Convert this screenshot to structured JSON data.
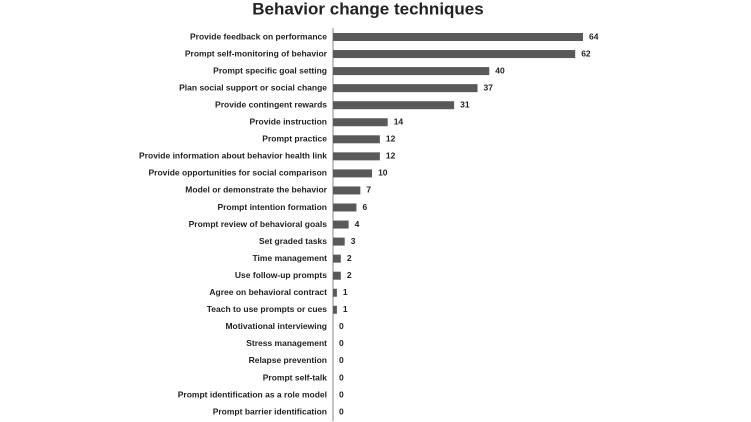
{
  "chart_data": {
    "type": "bar",
    "orientation": "horizontal",
    "title": "Behavior change techniques",
    "categories": [
      "Provide feedback on performance",
      "Prompt self-monitoring of behavior",
      "Prompt specific goal setting",
      "Plan social support or social change",
      "Provide contingent rewards",
      "Provide instruction",
      "Prompt practice",
      "Provide information about behavior health link",
      "Provide opportunities for social comparison",
      "Model or demonstrate the behavior",
      "Prompt intention formation",
      "Prompt review of behavioral goals",
      "Set graded tasks",
      "Time management",
      "Use follow-up prompts",
      "Agree on behavioral contract",
      "Teach to use prompts or cues",
      "Motivational interviewing",
      "Stress management",
      "Relapse prevention",
      "Prompt self-talk",
      "Prompt identification as a role model",
      "Prompt barrier identification"
    ],
    "values": [
      64,
      62,
      40,
      37,
      31,
      14,
      12,
      12,
      10,
      7,
      6,
      4,
      3,
      2,
      2,
      1,
      1,
      0,
      0,
      0,
      0,
      0,
      0
    ],
    "color": "#595959"
  }
}
